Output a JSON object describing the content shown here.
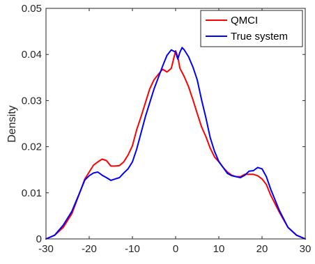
{
  "chart_data": {
    "type": "line",
    "ylabel": "Density",
    "xlim": [
      -30,
      30
    ],
    "ylim": [
      0,
      0.05
    ],
    "x_ticks": [
      "-30",
      "-20",
      "-10",
      "0",
      "10",
      "20",
      "30"
    ],
    "y_ticks": [
      "0",
      "0.01",
      "0.02",
      "0.03",
      "0.04",
      "0.05"
    ],
    "grid": false,
    "legend_position": "top-right",
    "series": [
      {
        "name": "QMCI",
        "color": "#ff0000",
        "x": [
          -30,
          -28,
          -26,
          -24,
          -22,
          -21,
          -20,
          -19,
          -18,
          -17,
          -16,
          -15,
          -14,
          -13,
          -12,
          -11,
          -10,
          -9,
          -8,
          -7,
          -6,
          -5,
          -4,
          -3,
          -2,
          -1,
          0,
          0.5,
          1,
          2,
          3,
          4,
          5,
          6,
          7,
          8,
          9,
          10,
          11,
          12,
          13,
          14,
          15,
          16,
          17,
          18,
          19,
          20,
          21,
          22,
          24,
          26,
          28,
          30
        ],
        "y": [
          0.0,
          0.0008,
          0.0025,
          0.0055,
          0.0105,
          0.013,
          0.0145,
          0.016,
          0.0167,
          0.0173,
          0.017,
          0.0158,
          0.0158,
          0.0159,
          0.0167,
          0.0182,
          0.0202,
          0.0237,
          0.0265,
          0.0295,
          0.0325,
          0.0345,
          0.0357,
          0.0368,
          0.0362,
          0.037,
          0.0408,
          0.0395,
          0.037,
          0.0352,
          0.033,
          0.0302,
          0.0272,
          0.0243,
          0.0222,
          0.0197,
          0.0178,
          0.0167,
          0.0155,
          0.0145,
          0.0138,
          0.0135,
          0.0135,
          0.014,
          0.014,
          0.014,
          0.0137,
          0.013,
          0.0118,
          0.0095,
          0.0058,
          0.0025,
          0.0008,
          0.0
        ]
      },
      {
        "name": "True system",
        "color": "#0000ff",
        "x": [
          -30,
          -28,
          -26,
          -24,
          -22,
          -21,
          -20,
          -19,
          -18,
          -17,
          -16,
          -15,
          -14,
          -13,
          -12,
          -11,
          -10,
          -9,
          -8,
          -7,
          -6,
          -5,
          -4,
          -3,
          -2,
          -1,
          0,
          0.5,
          1,
          1.5,
          2,
          3,
          4,
          5,
          6,
          7,
          8,
          9,
          10,
          11,
          12,
          13,
          14,
          15,
          16,
          17,
          18,
          19,
          20,
          21,
          22,
          24,
          26,
          28,
          30
        ],
        "y": [
          0.0,
          0.0008,
          0.003,
          0.006,
          0.0105,
          0.0128,
          0.0137,
          0.0143,
          0.0145,
          0.0138,
          0.0133,
          0.0127,
          0.013,
          0.0133,
          0.0143,
          0.0152,
          0.0167,
          0.0195,
          0.023,
          0.0265,
          0.0295,
          0.0325,
          0.035,
          0.0375,
          0.0398,
          0.041,
          0.0405,
          0.039,
          0.0405,
          0.0415,
          0.041,
          0.0395,
          0.0373,
          0.0345,
          0.0302,
          0.0263,
          0.022,
          0.019,
          0.0168,
          0.0155,
          0.0142,
          0.0137,
          0.0135,
          0.0133,
          0.0138,
          0.0147,
          0.0148,
          0.0155,
          0.0152,
          0.0135,
          0.0108,
          0.0062,
          0.0025,
          0.0008,
          0.0
        ]
      }
    ]
  }
}
